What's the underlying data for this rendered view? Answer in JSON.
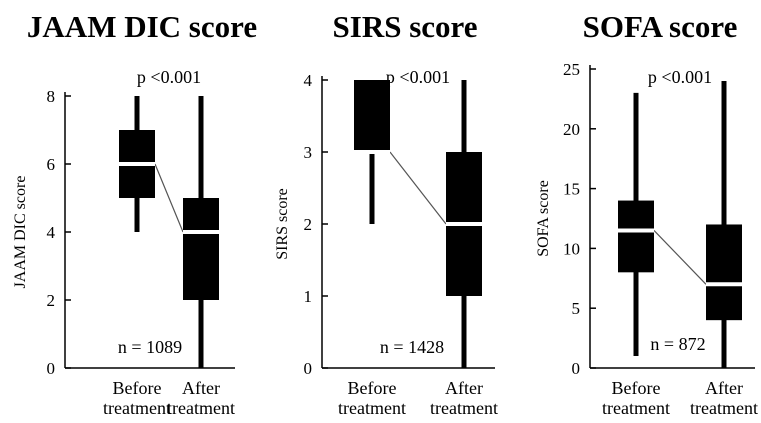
{
  "chart_data": [
    {
      "type": "boxplot",
      "title": "JAAM DIC score",
      "ylabel": "JAAM DIC score",
      "categories": [
        "Before\ntreatment",
        "After\ntreatment"
      ],
      "ylim": [
        0,
        8
      ],
      "yticks": [
        "0",
        "2",
        "4",
        "6",
        "8"
      ],
      "boxes": [
        {
          "min": 4,
          "q1": 5,
          "median": 6,
          "q3": 7,
          "max": 8
        },
        {
          "min": 0,
          "q1": 2,
          "median": 4,
          "q3": 5,
          "max": 8
        }
      ],
      "p_value": "p <0.001",
      "n": "n = 1089"
    },
    {
      "type": "boxplot",
      "title": "SIRS score",
      "ylabel": "SIRS score",
      "categories": [
        "Before\ntreatment",
        "After\ntreatment"
      ],
      "ylim": [
        0,
        4
      ],
      "yticks": [
        "0",
        "1",
        "2",
        "3",
        "4"
      ],
      "boxes": [
        {
          "min": 2,
          "q1": 3,
          "median": 3,
          "q3": 4,
          "max": 4
        },
        {
          "min": 0,
          "q1": 1,
          "median": 2,
          "q3": 3,
          "max": 4
        }
      ],
      "p_value": "p <0.001",
      "n": "n = 1428"
    },
    {
      "type": "boxplot",
      "title": "SOFA score",
      "ylabel": "SOFA score",
      "categories": [
        "Before\ntreatment",
        "After\ntreatment"
      ],
      "ylim": [
        0,
        25
      ],
      "yticks": [
        "0",
        "5",
        "10",
        "15",
        "20",
        "25"
      ],
      "boxes": [
        {
          "min": 1,
          "q1": 8,
          "median": 11.5,
          "q3": 14,
          "max": 23
        },
        {
          "min": 0,
          "q1": 4,
          "median": 7,
          "q3": 12,
          "max": 24
        }
      ],
      "p_value": "p <0.001",
      "n": "n = 872"
    }
  ]
}
